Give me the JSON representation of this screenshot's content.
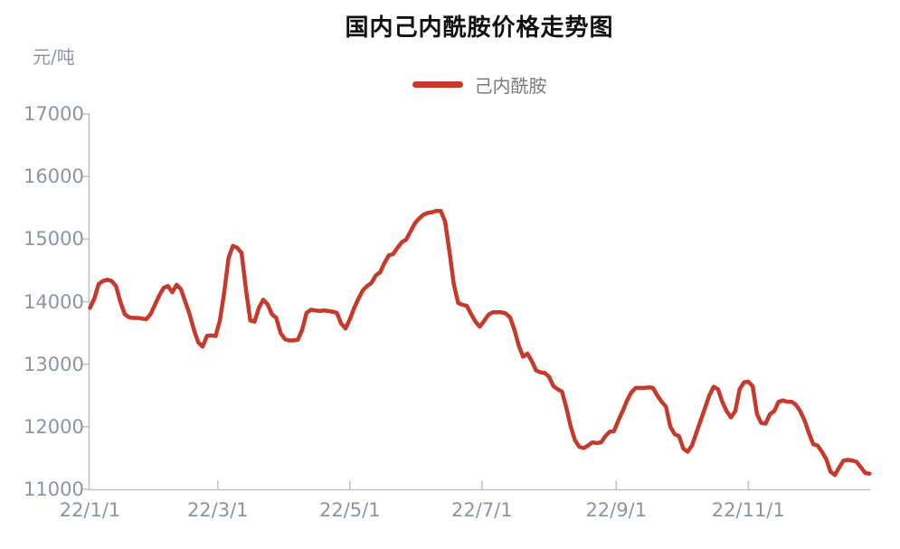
{
  "title": "国内己内酰胺价格走势图",
  "legend": {
    "label": "己内酰胺"
  },
  "y_axis": {
    "unit": "元/吨",
    "ticks": [
      17000,
      16000,
      15000,
      14000,
      13000,
      12000,
      11000
    ]
  },
  "x_axis": {
    "ticks": [
      "22/1/1",
      "22/3/1",
      "22/5/1",
      "22/7/1",
      "22/9/1",
      "22/11/1"
    ]
  },
  "colors": {
    "line": "#c6392b",
    "axis": "#c3c3c3",
    "tick_text": "#8c95a3",
    "title_text": "#111111",
    "legend_text": "#7b7b7b"
  },
  "chart_data": {
    "type": "line",
    "title": "国内己内酰胺价格走势图",
    "xlabel": "",
    "ylabel": "元/吨",
    "ylim": [
      11000,
      17000
    ],
    "grid": false,
    "legend_position": "top-center",
    "x_tick_labels": [
      "22/1/1",
      "22/3/1",
      "22/5/1",
      "22/7/1",
      "22/9/1",
      "22/11/1"
    ],
    "series": [
      {
        "name": "己内酰胺",
        "points": [
          [
            "22/1/1",
            13900
          ],
          [
            "22/1/3",
            14050
          ],
          [
            "22/1/5",
            14280
          ],
          [
            "22/1/7",
            14330
          ],
          [
            "22/1/9",
            14350
          ],
          [
            "22/1/11",
            14330
          ],
          [
            "22/1/13",
            14250
          ],
          [
            "22/1/15",
            14000
          ],
          [
            "22/1/17",
            13800
          ],
          [
            "22/1/19",
            13750
          ],
          [
            "22/1/21",
            13740
          ],
          [
            "22/1/23",
            13740
          ],
          [
            "22/1/25",
            13730
          ],
          [
            "22/1/27",
            13720
          ],
          [
            "22/1/29",
            13800
          ],
          [
            "22/1/31",
            13950
          ],
          [
            "22/2/2",
            14100
          ],
          [
            "22/2/4",
            14220
          ],
          [
            "22/2/6",
            14250
          ],
          [
            "22/2/8",
            14150
          ],
          [
            "22/2/10",
            14270
          ],
          [
            "22/2/12",
            14200
          ],
          [
            "22/2/14",
            14000
          ],
          [
            "22/2/16",
            13800
          ],
          [
            "22/2/18",
            13550
          ],
          [
            "22/2/20",
            13350
          ],
          [
            "22/2/22",
            13280
          ],
          [
            "22/2/24",
            13450
          ],
          [
            "22/2/26",
            13460
          ],
          [
            "22/2/28",
            13450
          ],
          [
            "22/3/2",
            13700
          ],
          [
            "22/3/4",
            14150
          ],
          [
            "22/3/6",
            14700
          ],
          [
            "22/3/8",
            14890
          ],
          [
            "22/3/10",
            14860
          ],
          [
            "22/3/12",
            14780
          ],
          [
            "22/3/14",
            14200
          ],
          [
            "22/3/16",
            13700
          ],
          [
            "22/3/18",
            13680
          ],
          [
            "22/3/20",
            13900
          ],
          [
            "22/3/22",
            14030
          ],
          [
            "22/3/24",
            13960
          ],
          [
            "22/3/26",
            13800
          ],
          [
            "22/3/28",
            13740
          ],
          [
            "22/3/30",
            13500
          ],
          [
            "22/4/1",
            13400
          ],
          [
            "22/4/3",
            13380
          ],
          [
            "22/4/5",
            13380
          ],
          [
            "22/4/7",
            13390
          ],
          [
            "22/4/9",
            13550
          ],
          [
            "22/4/11",
            13820
          ],
          [
            "22/4/13",
            13870
          ],
          [
            "22/4/15",
            13860
          ],
          [
            "22/4/17",
            13850
          ],
          [
            "22/4/19",
            13860
          ],
          [
            "22/4/21",
            13850
          ],
          [
            "22/4/23",
            13840
          ],
          [
            "22/4/25",
            13820
          ],
          [
            "22/4/27",
            13650
          ],
          [
            "22/4/29",
            13570
          ],
          [
            "22/5/1",
            13720
          ],
          [
            "22/5/3",
            13900
          ],
          [
            "22/5/5",
            14050
          ],
          [
            "22/5/7",
            14180
          ],
          [
            "22/5/9",
            14250
          ],
          [
            "22/5/11",
            14300
          ],
          [
            "22/5/13",
            14420
          ],
          [
            "22/5/15",
            14470
          ],
          [
            "22/5/17",
            14620
          ],
          [
            "22/5/19",
            14740
          ],
          [
            "22/5/21",
            14760
          ],
          [
            "22/5/23",
            14860
          ],
          [
            "22/5/25",
            14950
          ],
          [
            "22/5/27",
            14990
          ],
          [
            "22/5/29",
            15120
          ],
          [
            "22/5/31",
            15250
          ],
          [
            "22/6/2",
            15330
          ],
          [
            "22/6/4",
            15390
          ],
          [
            "22/6/6",
            15420
          ],
          [
            "22/6/8",
            15430
          ],
          [
            "22/6/10",
            15450
          ],
          [
            "22/6/12",
            15450
          ],
          [
            "22/6/14",
            15280
          ],
          [
            "22/6/16",
            14800
          ],
          [
            "22/6/18",
            14280
          ],
          [
            "22/6/20",
            13980
          ],
          [
            "22/6/22",
            13950
          ],
          [
            "22/6/24",
            13930
          ],
          [
            "22/6/26",
            13800
          ],
          [
            "22/6/28",
            13680
          ],
          [
            "22/6/30",
            13600
          ],
          [
            "22/7/2",
            13690
          ],
          [
            "22/7/4",
            13790
          ],
          [
            "22/7/6",
            13830
          ],
          [
            "22/7/8",
            13830
          ],
          [
            "22/7/10",
            13830
          ],
          [
            "22/7/12",
            13810
          ],
          [
            "22/7/14",
            13750
          ],
          [
            "22/7/16",
            13550
          ],
          [
            "22/7/18",
            13300
          ],
          [
            "22/7/20",
            13120
          ],
          [
            "22/7/22",
            13170
          ],
          [
            "22/7/24",
            13050
          ],
          [
            "22/7/26",
            12900
          ],
          [
            "22/7/28",
            12870
          ],
          [
            "22/7/30",
            12860
          ],
          [
            "22/8/1",
            12800
          ],
          [
            "22/8/3",
            12650
          ],
          [
            "22/8/5",
            12600
          ],
          [
            "22/8/7",
            12560
          ],
          [
            "22/8/9",
            12300
          ],
          [
            "22/8/11",
            12000
          ],
          [
            "22/8/13",
            11780
          ],
          [
            "22/8/15",
            11680
          ],
          [
            "22/8/17",
            11660
          ],
          [
            "22/8/19",
            11700
          ],
          [
            "22/8/21",
            11750
          ],
          [
            "22/8/23",
            11740
          ],
          [
            "22/8/25",
            11750
          ],
          [
            "22/8/27",
            11850
          ],
          [
            "22/8/29",
            11920
          ],
          [
            "22/8/31",
            11930
          ],
          [
            "22/9/2",
            12100
          ],
          [
            "22/9/4",
            12250
          ],
          [
            "22/9/6",
            12420
          ],
          [
            "22/9/8",
            12550
          ],
          [
            "22/9/10",
            12620
          ],
          [
            "22/9/12",
            12620
          ],
          [
            "22/9/14",
            12620
          ],
          [
            "22/9/16",
            12630
          ],
          [
            "22/9/18",
            12620
          ],
          [
            "22/9/20",
            12500
          ],
          [
            "22/9/22",
            12400
          ],
          [
            "22/9/24",
            12320
          ],
          [
            "22/9/26",
            12000
          ],
          [
            "22/9/28",
            11880
          ],
          [
            "22/9/30",
            11850
          ],
          [
            "22/10/2",
            11650
          ],
          [
            "22/10/4",
            11600
          ],
          [
            "22/10/6",
            11700
          ],
          [
            "22/10/8",
            11900
          ],
          [
            "22/10/10",
            12100
          ],
          [
            "22/10/12",
            12300
          ],
          [
            "22/10/14",
            12500
          ],
          [
            "22/10/16",
            12640
          ],
          [
            "22/10/18",
            12600
          ],
          [
            "22/10/20",
            12400
          ],
          [
            "22/10/22",
            12250
          ],
          [
            "22/10/24",
            12150
          ],
          [
            "22/10/26",
            12250
          ],
          [
            "22/10/28",
            12600
          ],
          [
            "22/10/30",
            12710
          ],
          [
            "22/11/1",
            12720
          ],
          [
            "22/11/3",
            12650
          ],
          [
            "22/11/5",
            12200
          ],
          [
            "22/11/7",
            12060
          ],
          [
            "22/11/9",
            12050
          ],
          [
            "22/11/11",
            12200
          ],
          [
            "22/11/13",
            12250
          ],
          [
            "22/11/15",
            12400
          ],
          [
            "22/11/17",
            12420
          ],
          [
            "22/11/19",
            12400
          ],
          [
            "22/11/21",
            12400
          ],
          [
            "22/11/23",
            12350
          ],
          [
            "22/11/25",
            12250
          ],
          [
            "22/11/27",
            12100
          ],
          [
            "22/11/29",
            11900
          ],
          [
            "22/12/1",
            11720
          ],
          [
            "22/12/3",
            11700
          ],
          [
            "22/12/5",
            11600
          ],
          [
            "22/12/7",
            11480
          ],
          [
            "22/12/9",
            11280
          ],
          [
            "22/12/11",
            11230
          ],
          [
            "22/12/13",
            11350
          ],
          [
            "22/12/15",
            11460
          ],
          [
            "22/12/17",
            11470
          ],
          [
            "22/12/19",
            11460
          ],
          [
            "22/12/21",
            11440
          ],
          [
            "22/12/23",
            11350
          ],
          [
            "22/12/25",
            11260
          ],
          [
            "22/12/27",
            11250
          ]
        ]
      }
    ]
  }
}
